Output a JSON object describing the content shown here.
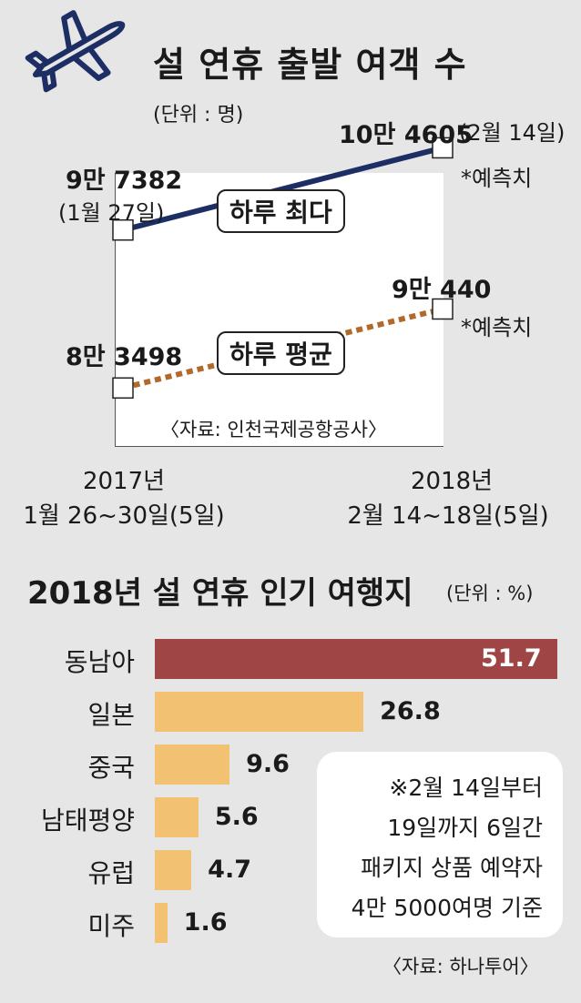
{
  "chart_data": [
    {
      "type": "line",
      "title": "설 연휴 출발 여객 수",
      "unit": "(단위 : 명)",
      "categories": [
        "2017년 1월 26~30일(5일)",
        "2018년 2월 14~18일(5일)"
      ],
      "x_tick_lines": [
        [
          "2017년",
          "1월 26~30일(5일)"
        ],
        [
          "2018년",
          "2월 14~18일(5일)"
        ]
      ],
      "series": [
        {
          "name": "하루 최다",
          "values": [
            97382,
            104605
          ],
          "value_labels": [
            "9만 7382",
            "10만 4605"
          ],
          "date_labels": [
            "(1월 27일)",
            "(2월 14일)"
          ],
          "color": "#1c2e64",
          "style": "solid"
        },
        {
          "name": "하루 평균",
          "values": [
            83498,
            90440
          ],
          "value_labels": [
            "8만 3498",
            "9만 440"
          ],
          "color": "#b26a2c",
          "style": "dotted"
        }
      ],
      "forecast_note": "*예측치",
      "source": "〈자료: 인천국제공항공사〉",
      "ylim": [
        80000,
        108000
      ]
    },
    {
      "type": "bar",
      "title": "2018년 설 연휴 인기 여행지",
      "unit": "(단위 : %)",
      "categories": [
        "동남아",
        "일본",
        "중국",
        "남태평양",
        "유럽",
        "미주"
      ],
      "values": [
        51.7,
        26.8,
        9.6,
        5.6,
        4.7,
        1.6
      ],
      "value_labels": [
        "51.7",
        "26.8",
        "9.6",
        "5.6",
        "4.7",
        "1.6"
      ],
      "xlim": [
        0,
        51.7
      ],
      "colors": {
        "highlight": "#a04545",
        "default": "#f2c272"
      },
      "note_lines": [
        "※2월 14일부터",
        "19일까지 6일간",
        "패키지 상품 예약자",
        "4만 5000여명 기준"
      ],
      "source": "〈자료: 하나투어〉"
    }
  ],
  "icons": {
    "top_left": "airplane-icon"
  }
}
